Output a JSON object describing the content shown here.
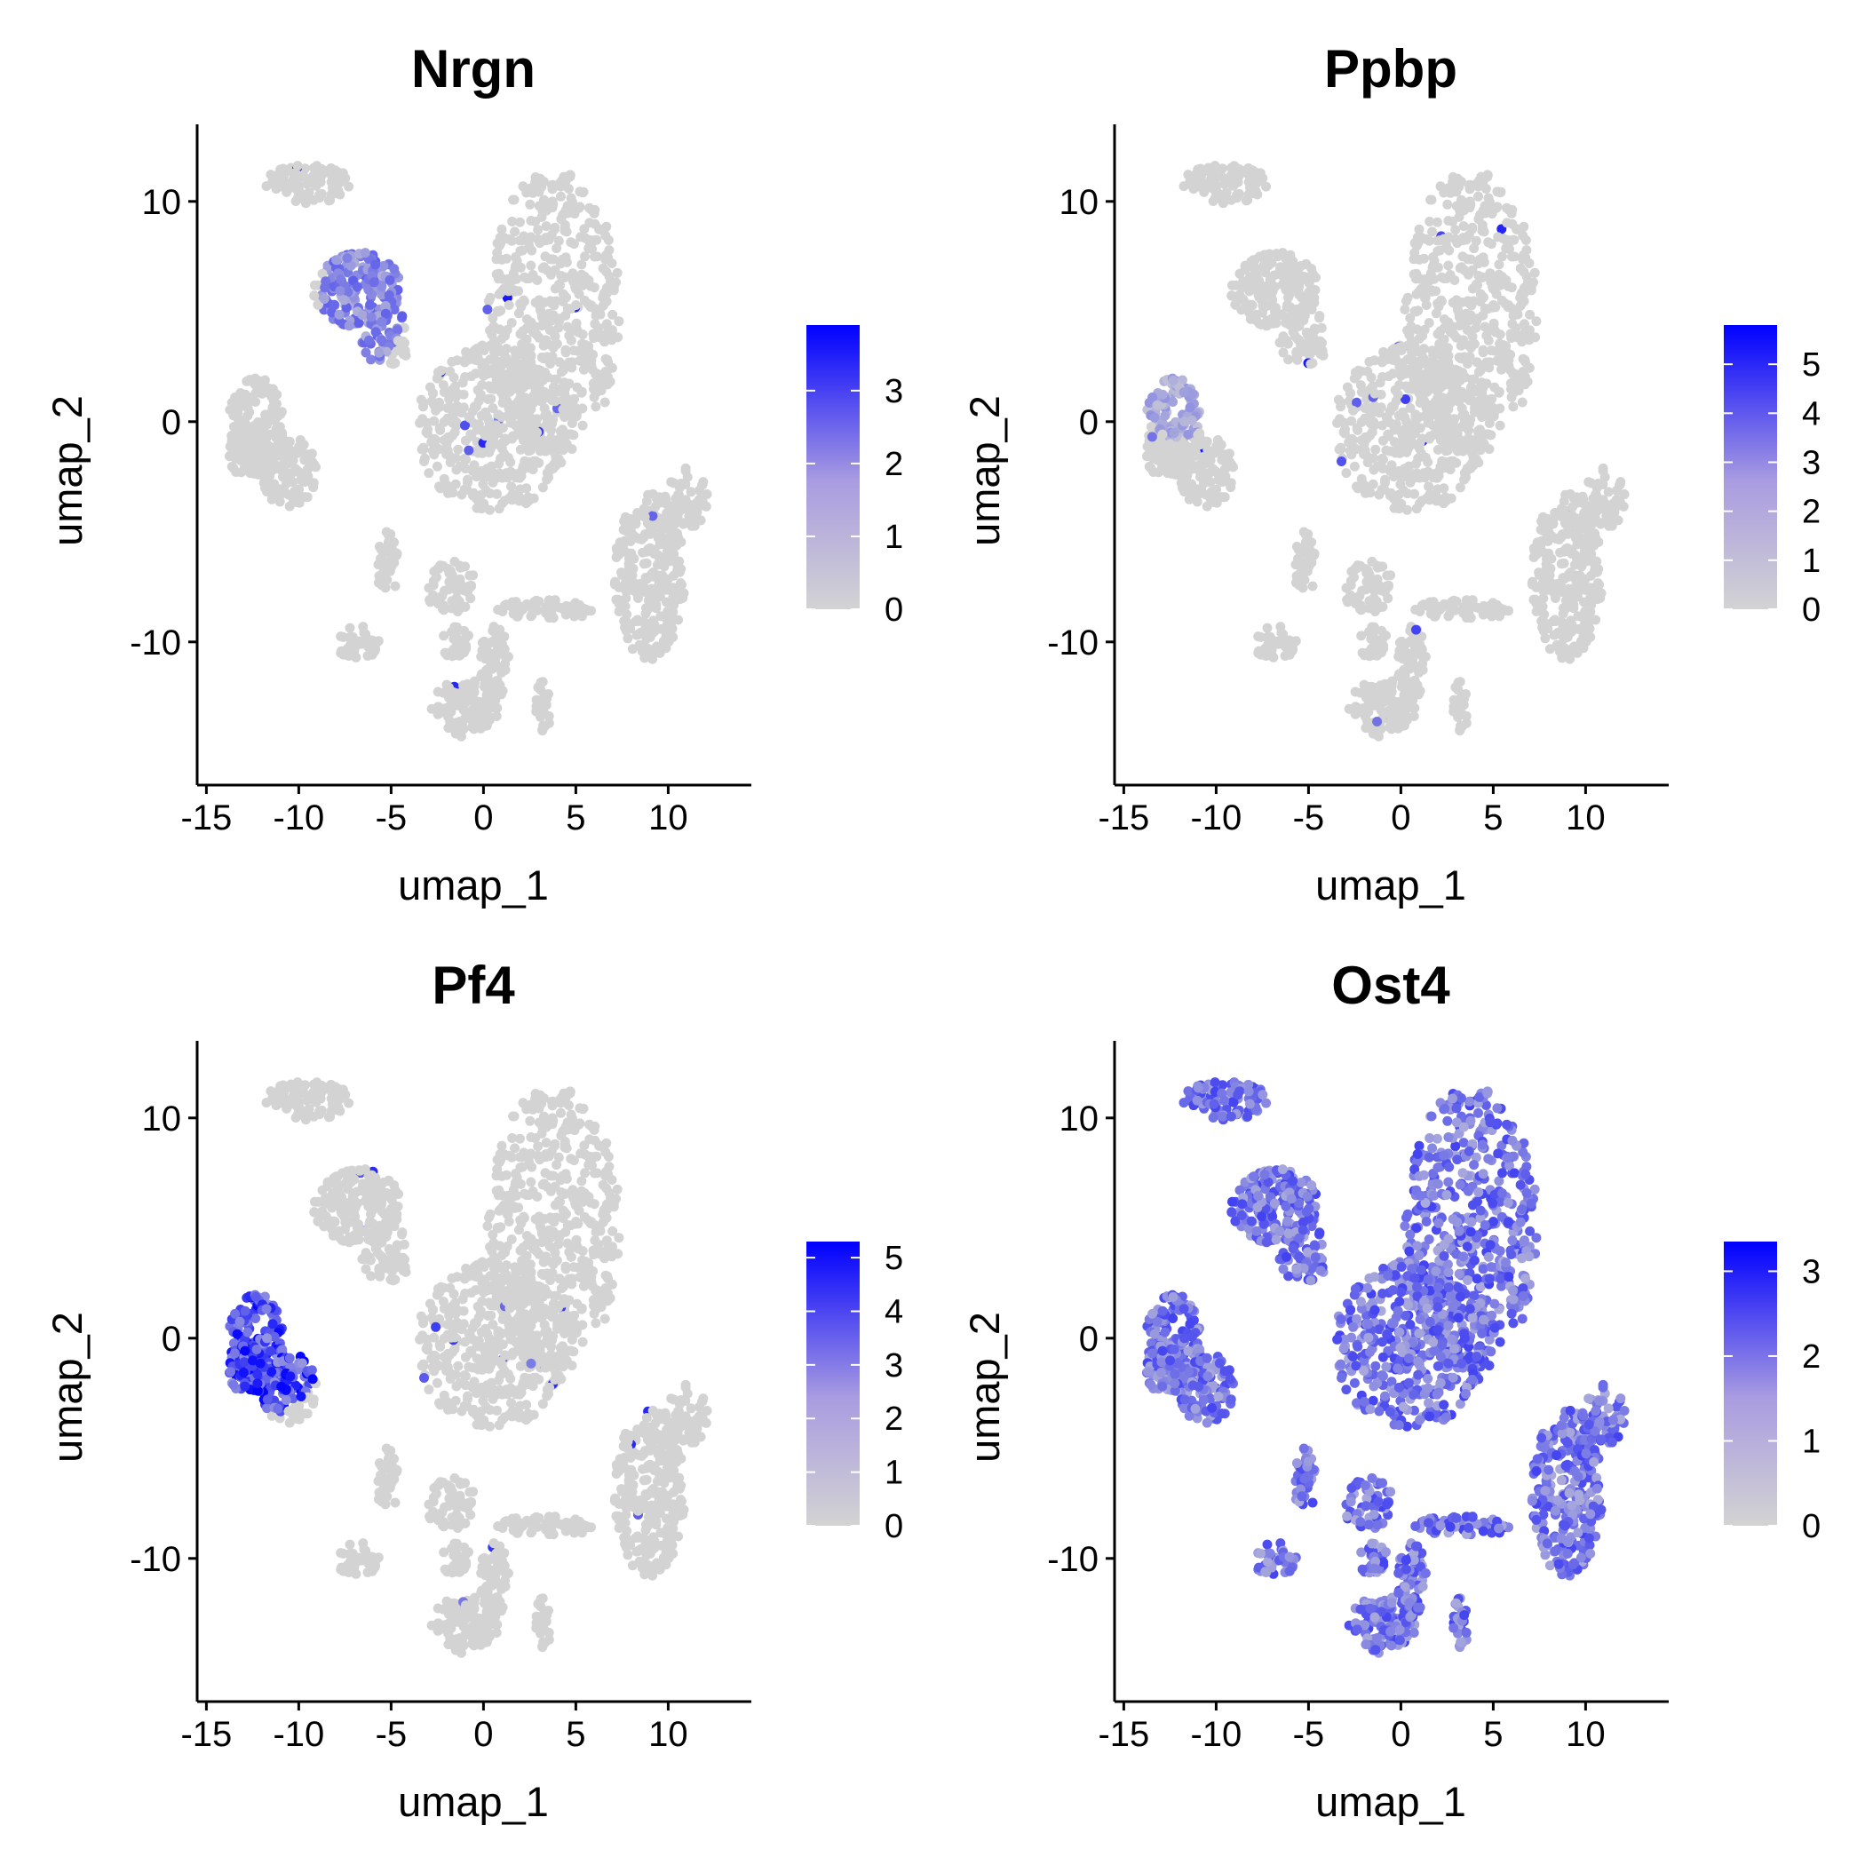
{
  "colors": {
    "low": "#d3d3d3",
    "high": "#0000ff",
    "mid_expr": "#8e7ce8",
    "axis": "#000000"
  },
  "chart_data": [
    {
      "type": "scatter",
      "title": "Nrgn",
      "xlabel": "umap_1",
      "ylabel": "umap_2",
      "xlim": [
        -15.5,
        14.5
      ],
      "ylim": [
        -16.5,
        13.5
      ],
      "xticks": [
        -15,
        -10,
        -5,
        0,
        5,
        10
      ],
      "yticks": [
        -10,
        0,
        10
      ],
      "legend": {
        "position": "right",
        "max": 3.9,
        "ticks": [
          0,
          1,
          2,
          3
        ]
      },
      "expression_regions": [
        {
          "cx": -6.5,
          "cy": 5.5,
          "rx": 2.3,
          "ry": 3.0,
          "level": 0.45
        }
      ]
    },
    {
      "type": "scatter",
      "title": "Ppbp",
      "xlabel": "umap_1",
      "ylabel": "umap_2",
      "xlim": [
        -15.5,
        14.5
      ],
      "ylim": [
        -16.5,
        13.5
      ],
      "xticks": [
        -15,
        -10,
        -5,
        0,
        5,
        10
      ],
      "yticks": [
        -10,
        0,
        10
      ],
      "legend": {
        "position": "right",
        "max": 5.8,
        "ticks": [
          0,
          1,
          2,
          3,
          4,
          5
        ]
      },
      "expression_regions": [
        {
          "cx": -12.0,
          "cy": 1.0,
          "rx": 1.8,
          "ry": 1.8,
          "level": 0.25
        }
      ]
    },
    {
      "type": "scatter",
      "title": "Pf4",
      "xlabel": "umap_1",
      "ylabel": "umap_2",
      "xlim": [
        -15.5,
        14.5
      ],
      "ylim": [
        -16.5,
        13.5
      ],
      "xticks": [
        -15,
        -10,
        -5,
        0,
        5,
        10
      ],
      "yticks": [
        -10,
        0,
        10
      ],
      "legend": {
        "position": "right",
        "max": 5.3,
        "ticks": [
          0,
          1,
          2,
          3,
          4,
          5
        ]
      },
      "expression_regions": [
        {
          "cx": -11.5,
          "cy": -0.5,
          "rx": 2.6,
          "ry": 2.9,
          "level": 0.8
        }
      ]
    },
    {
      "type": "scatter",
      "title": "Ost4",
      "xlabel": "umap_1",
      "ylabel": "umap_2",
      "xlim": [
        -15.5,
        14.5
      ],
      "ylim": [
        -16.5,
        13.5
      ],
      "xticks": [
        -15,
        -10,
        -5,
        0,
        5,
        10
      ],
      "yticks": [
        -10,
        0,
        10
      ],
      "legend": {
        "position": "right",
        "max": 3.35,
        "ticks": [
          0,
          1,
          2,
          3
        ]
      },
      "expression_regions": [
        {
          "cx": 0,
          "cy": 0,
          "rx": 30,
          "ry": 30,
          "level": 0.55
        }
      ]
    }
  ]
}
